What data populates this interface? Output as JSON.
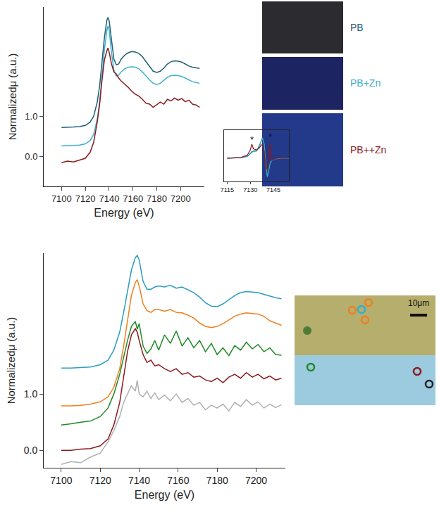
{
  "chart_data": [
    {
      "type": "line",
      "xlabel": "Energy (eV)",
      "ylabel": "Normalizedμ (a.u.)",
      "x": [
        7100,
        7105,
        7110,
        7115,
        7120,
        7124,
        7127,
        7130,
        7132,
        7134,
        7136,
        7138,
        7139,
        7140,
        7142,
        7144,
        7146,
        7148,
        7150,
        7153,
        7156,
        7159,
        7162,
        7165,
        7168,
        7171,
        7174,
        7177,
        7180,
        7183,
        7186,
        7189,
        7192,
        7195,
        7198,
        7201,
        7204,
        7207,
        7210,
        7213,
        7216
      ],
      "series": [
        {
          "name": "PB",
          "color": "#1f5f73",
          "values": [
            0.72,
            0.72,
            0.73,
            0.74,
            0.77,
            0.85,
            1.0,
            1.35,
            1.75,
            2.35,
            2.95,
            3.38,
            3.46,
            3.38,
            2.85,
            2.42,
            2.28,
            2.3,
            2.42,
            2.52,
            2.58,
            2.61,
            2.6,
            2.56,
            2.48,
            2.36,
            2.22,
            2.12,
            2.09,
            2.12,
            2.2,
            2.3,
            2.36,
            2.38,
            2.37,
            2.35,
            2.3,
            2.25,
            2.22,
            2.2,
            2.19
          ]
        },
        {
          "name": "PB+Zn",
          "color": "#3bb0c9",
          "values": [
            0.26,
            0.26,
            0.27,
            0.28,
            0.31,
            0.39,
            0.55,
            0.92,
            1.35,
            1.98,
            2.65,
            3.12,
            3.25,
            3.15,
            2.58,
            2.15,
            2.0,
            2.02,
            2.1,
            2.18,
            2.22,
            2.23,
            2.22,
            2.18,
            2.1,
            2.0,
            1.9,
            1.82,
            1.79,
            1.82,
            1.9,
            1.97,
            2.01,
            2.02,
            2.01,
            1.99,
            1.95,
            1.9,
            1.86,
            1.84,
            1.82
          ]
        },
        {
          "name": "PB++Zn",
          "color": "#8b1a1e",
          "values": [
            -0.16,
            -0.12,
            -0.14,
            -0.1,
            -0.05,
            0.1,
            0.35,
            0.85,
            1.3,
            1.9,
            2.4,
            2.62,
            2.7,
            2.6,
            2.3,
            2.1,
            2.05,
            1.95,
            1.88,
            1.8,
            1.72,
            1.62,
            1.55,
            1.5,
            1.42,
            1.32,
            1.3,
            1.22,
            1.28,
            1.35,
            1.3,
            1.42,
            1.38,
            1.45,
            1.4,
            1.44,
            1.36,
            1.4,
            1.3,
            1.28,
            1.22
          ]
        }
      ],
      "xlim": [
        7085,
        7220
      ],
      "xticks": [
        7100,
        7120,
        7140,
        7160,
        7180,
        7200
      ],
      "ylim": [
        -0.75,
        3.72
      ],
      "yticks": [
        {
          "value": 0,
          "label": "0.0"
        },
        {
          "value": 1,
          "label": "1.0"
        }
      ]
    },
    {
      "type": "line",
      "tick_labels": "x",
      "x": [
        7115,
        7118,
        7121,
        7124,
        7126,
        7128,
        7130,
        7131,
        7132,
        7134,
        7136,
        7137,
        7138,
        7139,
        7140,
        7141,
        7142,
        7143,
        7144,
        7146,
        7148,
        7151,
        7155
      ],
      "series": [
        {
          "color": "#1f5f73",
          "values": [
            0,
            0,
            0.01,
            0.02,
            0.05,
            0.08,
            0.2,
            0.28,
            0.3,
            0.32,
            0.55,
            0.75,
            0.9,
            0.55,
            -0.3,
            -0.75,
            -0.4,
            -0.15,
            -0.1,
            -0.05,
            0,
            0,
            0
          ]
        },
        {
          "color": "#3bb0c9",
          "values": [
            0,
            0,
            0.01,
            0.02,
            0.04,
            0.07,
            0.18,
            0.25,
            0.28,
            0.3,
            0.5,
            0.72,
            0.85,
            0.6,
            -0.2,
            -0.8,
            -0.5,
            -0.2,
            -0.1,
            -0.05,
            0,
            0,
            0
          ]
        },
        {
          "color": "#8b1a1e",
          "values": [
            0,
            0.01,
            0,
            0.03,
            0.08,
            0.12,
            0.35,
            0.6,
            0.4,
            0.35,
            0.45,
            0.55,
            0.6,
            0.3,
            -0.35,
            -0.5,
            0.05,
            0.65,
            -0.1,
            -0.05,
            0.02,
            0,
            0.01
          ]
        }
      ],
      "annotations": [
        {
          "x": 7131,
          "y": 0.8,
          "text": "*"
        },
        {
          "x": 7143,
          "y": 0.9,
          "text": "*"
        }
      ],
      "xlim": [
        7113,
        7155
      ],
      "xticks": [
        7115,
        7130,
        7145
      ],
      "ylim": [
        -1,
        1.2
      ]
    },
    {
      "type": "line",
      "xlabel": "Energy (eV)",
      "ylabel": "Normalizedμ (a.u.)",
      "x": [
        7100,
        7105,
        7110,
        7115,
        7120,
        7124,
        7127,
        7130,
        7132,
        7134,
        7136,
        7138,
        7139,
        7140,
        7142,
        7144,
        7146,
        7148,
        7150,
        7153,
        7156,
        7159,
        7162,
        7165,
        7168,
        7171,
        7174,
        7177,
        7180,
        7183,
        7186,
        7189,
        7192,
        7195,
        7198,
        7201,
        7204,
        7207,
        7210,
        7213
      ],
      "series": [
        {
          "color": "#2a9cc0",
          "values": [
            1.46,
            1.46,
            1.47,
            1.48,
            1.52,
            1.6,
            1.78,
            2.1,
            2.45,
            2.85,
            3.2,
            3.42,
            3.46,
            3.38,
            3.0,
            2.86,
            2.86,
            2.9,
            2.92,
            2.9,
            2.93,
            2.88,
            2.9,
            2.85,
            2.8,
            2.72,
            2.62,
            2.56,
            2.55,
            2.6,
            2.68,
            2.75,
            2.8,
            2.82,
            2.81,
            2.8,
            2.77,
            2.74,
            2.71,
            2.69
          ]
        },
        {
          "color": "#f07f1f",
          "values": [
            0.79,
            0.79,
            0.8,
            0.82,
            0.86,
            0.95,
            1.12,
            1.45,
            1.85,
            2.3,
            2.75,
            2.98,
            3.03,
            2.92,
            2.6,
            2.48,
            2.45,
            2.5,
            2.5,
            2.47,
            2.5,
            2.45,
            2.44,
            2.4,
            2.35,
            2.26,
            2.2,
            2.18,
            2.2,
            2.25,
            2.32,
            2.38,
            2.42,
            2.44,
            2.43,
            2.42,
            2.38,
            2.3,
            2.26,
            2.22
          ]
        },
        {
          "color": "#1f8a24",
          "values": [
            0.45,
            0.47,
            0.5,
            0.52,
            0.6,
            0.75,
            1.0,
            1.35,
            1.65,
            1.95,
            2.2,
            2.29,
            2.15,
            2.25,
            1.85,
            1.72,
            1.8,
            1.95,
            1.78,
            2.05,
            1.9,
            2.12,
            1.85,
            2.0,
            1.82,
            1.95,
            1.75,
            1.9,
            1.7,
            1.82,
            1.68,
            1.86,
            1.78,
            1.92,
            1.8,
            1.88,
            1.75,
            1.82,
            1.7,
            1.69
          ]
        },
        {
          "color": "#8b1a1e",
          "values": [
            0.0,
            0.0,
            0.02,
            0.03,
            0.08,
            0.2,
            0.45,
            0.85,
            1.3,
            1.75,
            2.05,
            2.16,
            2.1,
            1.95,
            1.7,
            1.56,
            1.6,
            1.5,
            1.52,
            1.45,
            1.4,
            1.45,
            1.35,
            1.38,
            1.3,
            1.32,
            1.25,
            1.22,
            1.28,
            1.2,
            1.3,
            1.35,
            1.28,
            1.38,
            1.3,
            1.35,
            1.27,
            1.32,
            1.25,
            1.28
          ]
        },
        {
          "color": "#b0b0b0",
          "values": [
            -0.25,
            -0.2,
            -0.22,
            -0.12,
            -0.05,
            0.15,
            0.35,
            0.6,
            0.85,
            1.0,
            1.15,
            1.05,
            1.24,
            1.0,
            0.95,
            1.05,
            0.92,
            1.02,
            0.9,
            0.98,
            0.88,
            1.0,
            0.85,
            0.92,
            0.8,
            0.85,
            0.72,
            0.8,
            0.75,
            0.82,
            0.7,
            0.85,
            0.78,
            0.9,
            0.8,
            0.86,
            0.75,
            0.82,
            0.76,
            0.81
          ]
        }
      ],
      "xlim": [
        7091,
        7215
      ],
      "xticks": [
        7100,
        7120,
        7140,
        7160,
        7180,
        7200
      ],
      "ylim": [
        -0.31,
        3.5
      ],
      "yticks": [
        {
          "value": 0,
          "label": "0.0"
        },
        {
          "value": 1,
          "label": "1.0"
        }
      ]
    }
  ],
  "micrograph": {
    "scale_bar": "10μm"
  }
}
